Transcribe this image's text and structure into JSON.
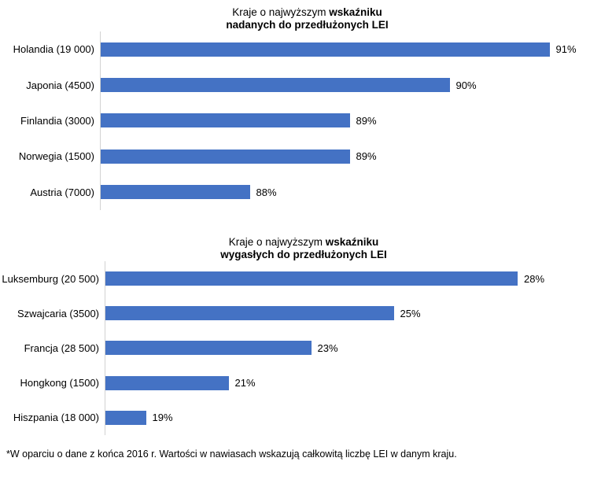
{
  "footnote": "*W oparciu o dane z końca 2016 r. Wartości w nawiasach wskazują całkowitą liczbę LEI w danym kraju.",
  "colors": {
    "bar": "#4472C4",
    "axis_line": "#d2d2d2",
    "text": "#000000"
  },
  "chart_data": [
    {
      "type": "bar",
      "orientation": "horizontal",
      "title": "Kraje o najwyższym wskaźniku nadanych do przedłużonych LEI",
      "title_line1_regular": "Kraje o najwyższym",
      "title_line1_bold": "wskaźniku",
      "title_line2_bold": "nadanych do przedłużonych LEI",
      "categories": [
        "Holandia (19 000)",
        "Japonia (4500)",
        "Finlandia (3000)",
        "Norwegia (1500)",
        "Austria (7000)"
      ],
      "values": [
        91,
        90,
        89,
        89,
        88
      ],
      "value_labels": [
        "91%",
        "90%",
        "89%",
        "89%",
        "88%"
      ],
      "unit": "%",
      "xlim": [
        86.5,
        91.5
      ],
      "grid": false,
      "legend": "none",
      "bar_color": "#4472C4"
    },
    {
      "type": "bar",
      "orientation": "horizontal",
      "title": "Kraje o najwyższym wskaźniku wygasłych do przedłużonych LEI",
      "title_line1_regular": "Kraje o najwyższym",
      "title_line1_bold": "wskaźniku",
      "title_line2_bold": "wygasłych do przedłużonych LEI",
      "categories": [
        "Luksemburg (20 500)",
        "Szwajcaria (3500)",
        "Francja (28 500)",
        "Hongkong (1500)",
        "Hiszpania (18 000)"
      ],
      "values": [
        28,
        25,
        23,
        21,
        19
      ],
      "value_labels": [
        "28%",
        "25%",
        "23%",
        "21%",
        "19%"
      ],
      "unit": "%",
      "xlim": [
        18,
        30
      ],
      "grid": false,
      "legend": "none",
      "bar_color": "#4472C4"
    }
  ]
}
